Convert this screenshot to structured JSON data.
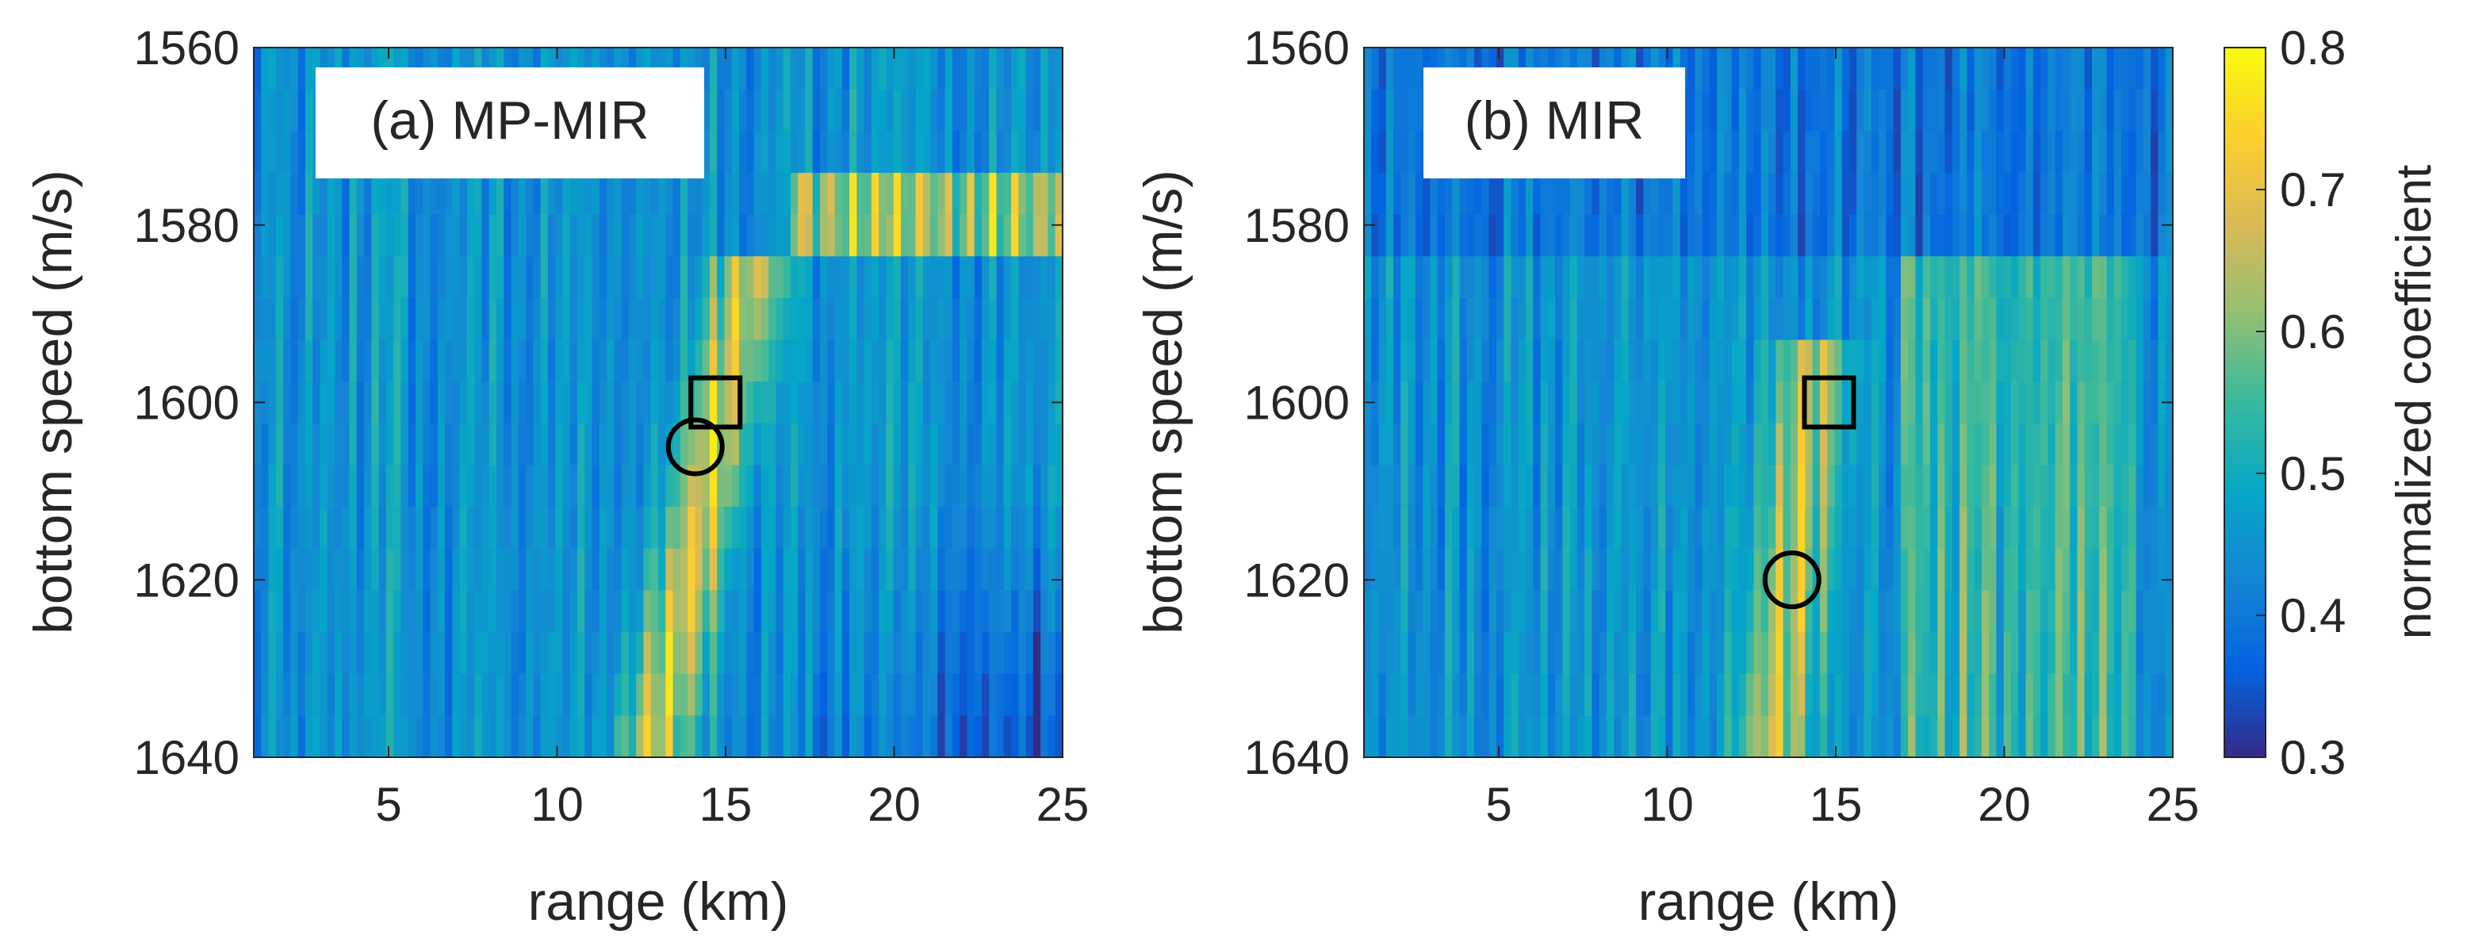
{
  "chart_data": [
    {
      "type": "heatmap",
      "panel": "a",
      "title": "(a) MP-MIR",
      "xlabel": "range (km)",
      "ylabel": "bottom speed (m/s)",
      "xlim": [
        1,
        25
      ],
      "ylim": [
        1560,
        1640
      ],
      "y_direction": "increasing downward",
      "x_ticks": [
        5,
        10,
        15,
        20,
        25
      ],
      "y_ticks": [
        1560,
        1580,
        1600,
        1620,
        1640
      ],
      "bright_ridge": {
        "start": {
          "x": 12.8,
          "y": 1640
        },
        "end": {
          "x": 15.8,
          "y": 1584
        },
        "peak_value": 0.78
      },
      "secondary_band": {
        "x_range": [
          17,
          25
        ],
        "y_range": [
          1572,
          1582
        ],
        "peak_value": 0.72
      },
      "markers": [
        {
          "shape": "square",
          "x": 14.7,
          "y": 1600
        },
        {
          "shape": "circle",
          "x": 14.1,
          "y": 1605
        }
      ]
    },
    {
      "type": "heatmap",
      "panel": "b",
      "title": "(b) MIR",
      "xlabel": "range (km)",
      "ylabel": "bottom speed (m/s)",
      "xlim": [
        1,
        25
      ],
      "ylim": [
        1560,
        1640
      ],
      "y_direction": "increasing downward",
      "x_ticks": [
        5,
        10,
        15,
        20,
        25
      ],
      "y_ticks": [
        1560,
        1580,
        1600,
        1620,
        1640
      ],
      "bright_ridge": {
        "start": {
          "x": 13.2,
          "y": 1640
        },
        "end": {
          "x": 14.3,
          "y": 1595
        },
        "peak_value": 0.76
      },
      "secondary_band": {
        "x_range": [
          17,
          24
        ],
        "y_range": [
          1585,
          1640
        ],
        "peak_value": 0.6
      },
      "markers": [
        {
          "shape": "square",
          "x": 14.8,
          "y": 1600
        },
        {
          "shape": "circle",
          "x": 13.7,
          "y": 1620
        }
      ]
    }
  ],
  "colorbar": {
    "label": "normalized coefficient",
    "range": [
      0.3,
      0.8
    ],
    "ticks": [
      0.3,
      0.4,
      0.5,
      0.6,
      0.7,
      0.8
    ],
    "colormap": "parula"
  },
  "colors": {
    "parula_stops": [
      "#352a87",
      "#0363e1",
      "#1485d4",
      "#06a7c6",
      "#38b99e",
      "#92bf73",
      "#d9ba56",
      "#fcce2e",
      "#f9fb0e"
    ]
  }
}
